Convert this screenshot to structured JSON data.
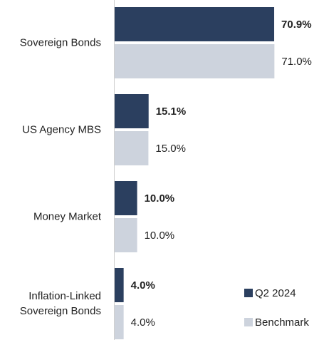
{
  "chart_data": {
    "type": "bar",
    "orientation": "horizontal",
    "categories": [
      "Sovereign Bonds",
      "US Agency MBS",
      "Money Market",
      "Inflation-Linked Sovereign Bonds"
    ],
    "series": [
      {
        "name": "Q2 2024",
        "color": "#2b3f5f",
        "values": [
          70.9,
          15.1,
          10.0,
          4.0
        ],
        "value_labels": [
          "70.9%",
          "15.1%",
          "10.0%",
          "4.0%"
        ]
      },
      {
        "name": "Benchmark",
        "color": "#cdd3dd",
        "values": [
          71.0,
          15.0,
          10.0,
          4.0
        ],
        "value_labels": [
          "71.0%",
          "15.0%",
          "10.0%",
          "4.0%"
        ]
      }
    ],
    "legend": "bottom-right"
  }
}
